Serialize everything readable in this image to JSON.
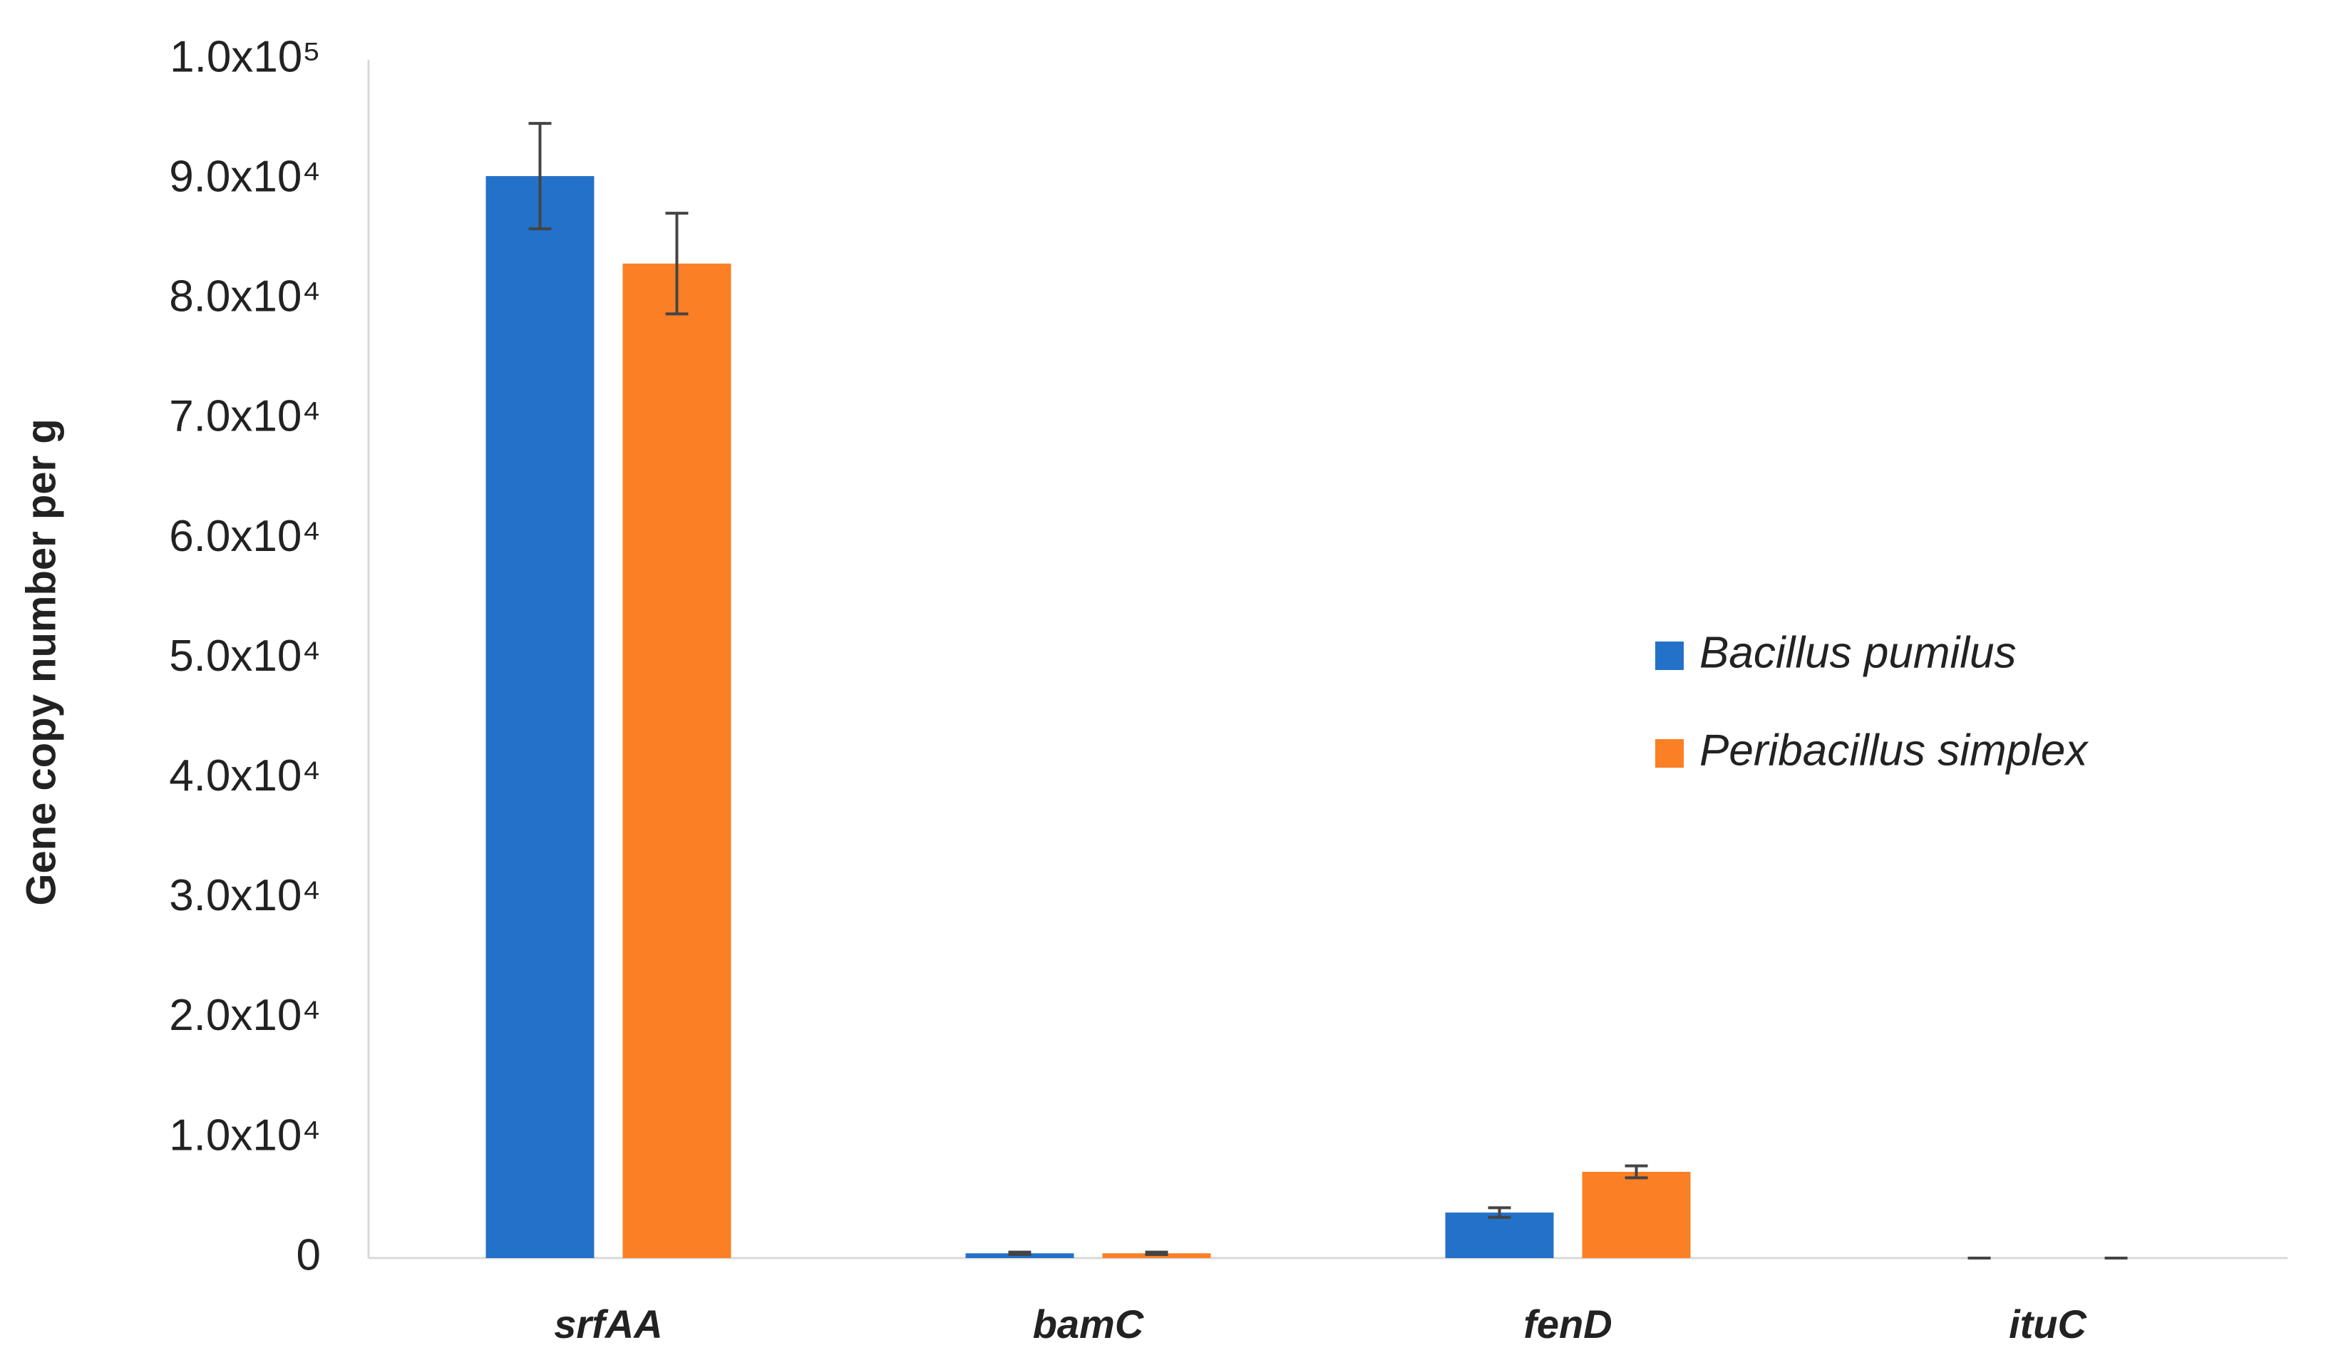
{
  "chart_data": {
    "type": "bar",
    "y_label": "Gene copy number per g",
    "categories": [
      "srfAA",
      "bamC",
      "fenD",
      "ituC"
    ],
    "series": [
      {
        "name": "Bacillus pumilus",
        "color": "#2471c9",
        "values": [
          90300,
          400,
          3800,
          0
        ],
        "errors": [
          4400,
          100,
          400,
          0
        ]
      },
      {
        "name": "Peribacillus simplex",
        "color": "#fb7f25",
        "values": [
          83000,
          400,
          7200,
          0
        ],
        "errors": [
          4200,
          100,
          500,
          0
        ]
      }
    ],
    "ylim": [
      0,
      100000
    ],
    "yticks": [
      0,
      {
        "value": 10000,
        "label": "1.0x10⁴"
      },
      {
        "value": 20000,
        "label": "2.0x10⁴"
      },
      {
        "value": 30000,
        "label": "3.0x10⁴"
      },
      {
        "value": 40000,
        "label": "4.0x10⁴"
      },
      {
        "value": 50000,
        "label": "5.0x10⁴"
      },
      {
        "value": 60000,
        "label": "6.0x10⁴"
      },
      {
        "value": 70000,
        "label": "7.0x10⁴"
      },
      {
        "value": 80000,
        "label": "8.0x10⁴"
      },
      {
        "value": 90000,
        "label": "9.0x10⁴"
      },
      {
        "value": 100000,
        "label": "1.0x10⁵"
      }
    ],
    "grid": false,
    "legend": "right"
  }
}
